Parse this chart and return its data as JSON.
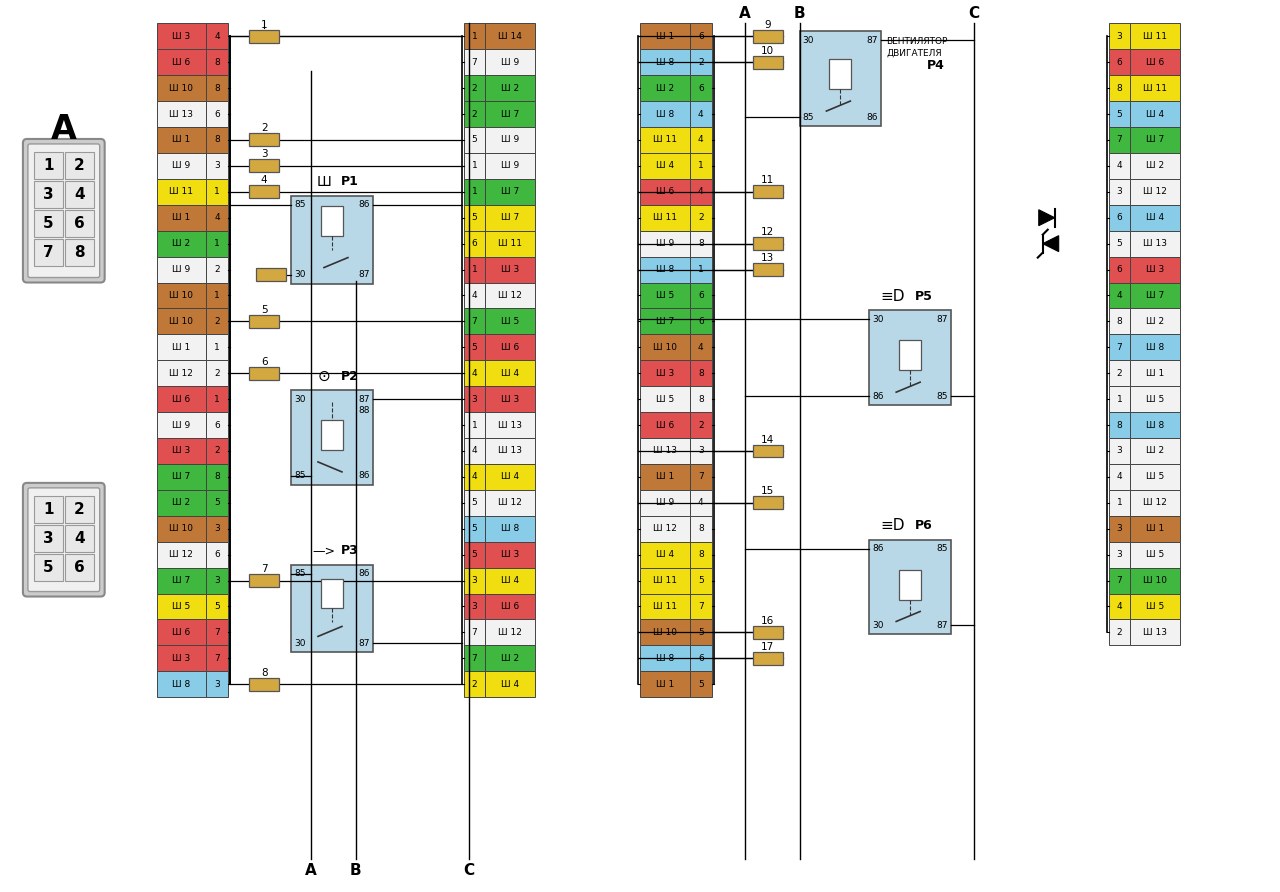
{
  "bg_color": "#ffffff",
  "fig_width": 12.8,
  "fig_height": 8.92,
  "left_rows": [
    [
      "Ш 3",
      4,
      "#e05050"
    ],
    [
      "Ш 6",
      8,
      "#e05050"
    ],
    [
      "Ш 10",
      8,
      "#c07838"
    ],
    [
      "Ш 13",
      6,
      "#f2f2f2"
    ],
    [
      "Ш 1",
      8,
      "#c07838"
    ],
    [
      "Ш 9",
      3,
      "#f2f2f2"
    ],
    [
      "Ш 11",
      1,
      "#f0de10"
    ],
    [
      "Ш 1",
      4,
      "#c07838"
    ],
    [
      "Ш 2",
      1,
      "#40b840"
    ],
    [
      "Ш 9",
      2,
      "#f2f2f2"
    ],
    [
      "Ш 10",
      1,
      "#c07838"
    ],
    [
      "Ш 10",
      2,
      "#c07838"
    ],
    [
      "Ш 1",
      1,
      "#f2f2f2"
    ],
    [
      "Ш 12",
      2,
      "#f2f2f2"
    ],
    [
      "Ш 6",
      1,
      "#e05050"
    ],
    [
      "Ш 9",
      6,
      "#f2f2f2"
    ],
    [
      "Ш 3",
      2,
      "#e05050"
    ],
    [
      "Ш 7",
      8,
      "#40b840"
    ],
    [
      "Ш 2",
      5,
      "#40b840"
    ],
    [
      "Ш 10",
      3,
      "#c07838"
    ],
    [
      "Ш 12",
      6,
      "#f2f2f2"
    ],
    [
      "Ш 7",
      3,
      "#40b840"
    ],
    [
      "Ш 5",
      5,
      "#f0de10"
    ],
    [
      "Ш 6",
      7,
      "#e05050"
    ],
    [
      "Ш 3",
      7,
      "#e05050"
    ],
    [
      "Ш 8",
      3,
      "#88cce8"
    ]
  ],
  "center_left_rows": [
    [
      1,
      "Ш 14",
      "#c07838"
    ],
    [
      7,
      "Ш 9",
      "#f2f2f2"
    ],
    [
      2,
      "Ш 2",
      "#40b840"
    ],
    [
      2,
      "Ш 7",
      "#40b840"
    ],
    [
      5,
      "Ш 9",
      "#f2f2f2"
    ],
    [
      1,
      "Ш 9",
      "#f2f2f2"
    ],
    [
      1,
      "Ш 7",
      "#40b840"
    ],
    [
      5,
      "Ш 7",
      "#f0de10"
    ],
    [
      6,
      "Ш 11",
      "#f0de10"
    ],
    [
      1,
      "Ш 3",
      "#e05050"
    ],
    [
      4,
      "Ш 12",
      "#f2f2f2"
    ],
    [
      7,
      "Ш 5",
      "#40b840"
    ],
    [
      5,
      "Ш 6",
      "#e05050"
    ],
    [
      4,
      "Ш 4",
      "#f0de10"
    ],
    [
      3,
      "Ш 3",
      "#e05050"
    ],
    [
      1,
      "Ш 13",
      "#f2f2f2"
    ],
    [
      4,
      "Ш 13",
      "#f2f2f2"
    ],
    [
      4,
      "Ш 4",
      "#f0de10"
    ],
    [
      5,
      "Ш 12",
      "#f2f2f2"
    ],
    [
      5,
      "Ш 8",
      "#88cce8"
    ],
    [
      5,
      "Ш 3",
      "#e05050"
    ],
    [
      3,
      "Ш 4",
      "#f0de10"
    ],
    [
      3,
      "Ш 6",
      "#e05050"
    ],
    [
      7,
      "Ш 12",
      "#f2f2f2"
    ],
    [
      7,
      "Ш 2",
      "#40b840"
    ],
    [
      2,
      "Ш 4",
      "#f0de10"
    ]
  ],
  "center_right_rows": [
    [
      "Ш 1",
      6,
      "#c07838"
    ],
    [
      "Ш 8",
      2,
      "#88cce8"
    ],
    [
      "Ш 2",
      6,
      "#40b840"
    ],
    [
      "Ш 8",
      4,
      "#88cce8"
    ],
    [
      "Ш 11",
      4,
      "#f0de10"
    ],
    [
      "Ш 4",
      1,
      "#f0de10"
    ],
    [
      "Ш 6",
      4,
      "#e05050"
    ],
    [
      "Ш 11",
      2,
      "#f0de10"
    ],
    [
      "Ш 9",
      8,
      "#f2f2f2"
    ],
    [
      "Ш 8",
      1,
      "#88cce8"
    ],
    [
      "Ш 5",
      6,
      "#40b840"
    ],
    [
      "Ш 7",
      6,
      "#40b840"
    ],
    [
      "Ш 10",
      4,
      "#c07838"
    ],
    [
      "Ш 3",
      8,
      "#e05050"
    ],
    [
      "Ш 5",
      8,
      "#f2f2f2"
    ],
    [
      "Ш 6",
      2,
      "#e05050"
    ],
    [
      "Ш 13",
      3,
      "#f2f2f2"
    ],
    [
      "Ш 1",
      7,
      "#c07838"
    ],
    [
      "Ш 9",
      4,
      "#f2f2f2"
    ],
    [
      "Ш 12",
      8,
      "#f2f2f2"
    ],
    [
      "Ш 4",
      8,
      "#f0de10"
    ],
    [
      "Ш 11",
      5,
      "#f0de10"
    ],
    [
      "Ш 11",
      7,
      "#f0de10"
    ],
    [
      "Ш 10",
      5,
      "#c07838"
    ],
    [
      "Ш 8",
      6,
      "#88cce8"
    ],
    [
      "Ш 1",
      5,
      "#c07838"
    ]
  ],
  "right_rows": [
    [
      3,
      "Ш 11",
      "#f0de10"
    ],
    [
      6,
      "Ш 6",
      "#e05050"
    ],
    [
      8,
      "Ш 11",
      "#f0de10"
    ],
    [
      5,
      "Ш 4",
      "#88cce8"
    ],
    [
      7,
      "Ш 7",
      "#40b840"
    ],
    [
      4,
      "Ш 2",
      "#f2f2f2"
    ],
    [
      3,
      "Ш 12",
      "#f2f2f2"
    ],
    [
      6,
      "Ш 4",
      "#88cce8"
    ],
    [
      5,
      "Ш 13",
      "#f2f2f2"
    ],
    [
      6,
      "Ш 3",
      "#e05050"
    ],
    [
      4,
      "Ш 7",
      "#40b840"
    ],
    [
      8,
      "Ш 2",
      "#f2f2f2"
    ],
    [
      7,
      "Ш 8",
      "#88cce8"
    ],
    [
      2,
      "Ш 1",
      "#f2f2f2"
    ],
    [
      1,
      "Ш 5",
      "#f2f2f2"
    ],
    [
      8,
      "Ш 8",
      "#88cce8"
    ],
    [
      3,
      "Ш 2",
      "#f2f2f2"
    ],
    [
      4,
      "Ш 5",
      "#f2f2f2"
    ],
    [
      1,
      "Ш 12",
      "#f2f2f2"
    ],
    [
      3,
      "Ш 1",
      "#c07838"
    ],
    [
      3,
      "Ш 5",
      "#f2f2f2"
    ],
    [
      7,
      "Ш 10",
      "#40b840"
    ],
    [
      4,
      "Ш 5",
      "#f0de10"
    ],
    [
      2,
      "Ш 13",
      "#f2f2f2"
    ]
  ]
}
